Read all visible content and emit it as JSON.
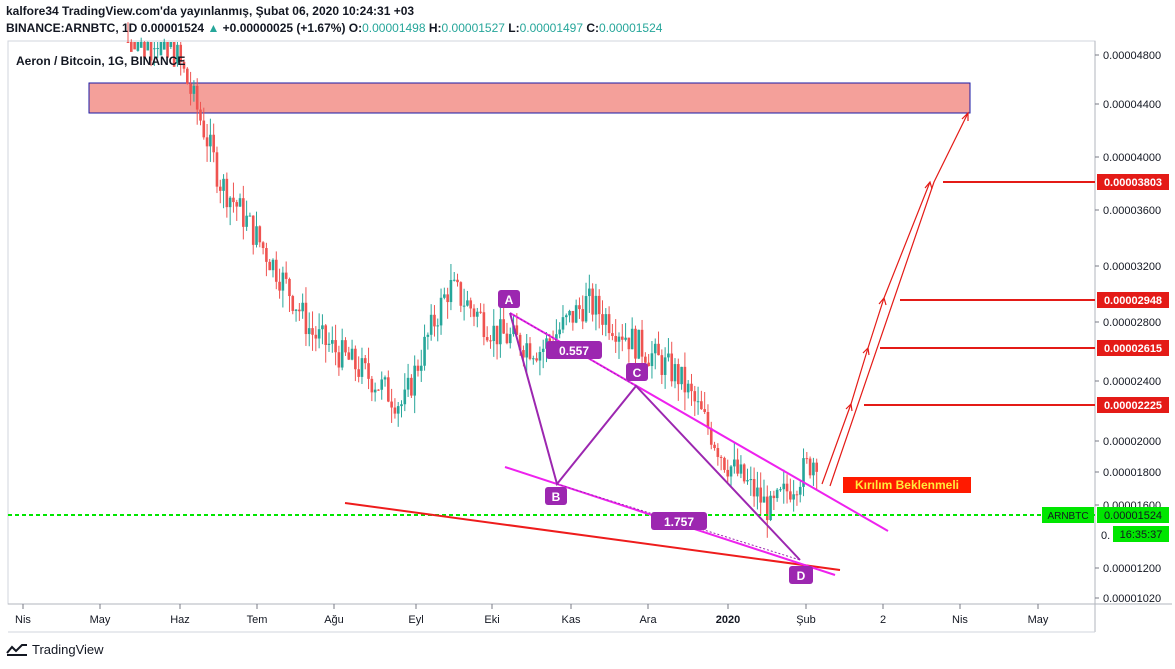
{
  "header": {
    "publish_line": "kalfore34 TradingView.com'da yayınlanmış, Şubat 06, 2020 10:24:31 +03",
    "symbol_line": "BINANCE:ARNBTC, 1D",
    "close": "0.00001524",
    "change_arrow": "▲",
    "change": "+0.00000025 (+1.67%)",
    "o_label": "O:",
    "o_value": "0.00001498",
    "h_label": "H:",
    "h_value": "0.00001527",
    "l_label": "L:",
    "l_value": "0.00001497",
    "c_label": "C:",
    "c_value": "0.00001524"
  },
  "chart": {
    "title": "Aeron / Bitcoin, 1G, BINANCE",
    "y_ticks": [
      "0.00004800",
      "0.00004400",
      "0.00004000",
      "0.00003600",
      "0.00003200",
      "0.00002800",
      "0.00002400",
      "0.00002000",
      "0.00001800",
      "0.00001600",
      "0.00001200",
      "0.00001020"
    ],
    "x_ticks": [
      "Nis",
      "May",
      "Haz",
      "Tem",
      "Ağu",
      "Eyl",
      "Eki",
      "Kas",
      "Ara",
      "2020",
      "Şub",
      "2",
      "Nis",
      "May"
    ],
    "price_tag": {
      "symbol": "ARNBTC",
      "value": "0.00001524",
      "countdown": "16:35:37",
      "partial": "0."
    },
    "target_labels": [
      "0.00003803",
      "0.00002948",
      "0.00002615",
      "0.00002225"
    ],
    "pattern_points": [
      "A",
      "B",
      "C",
      "D"
    ],
    "ratios": [
      "0.557",
      "1.757"
    ],
    "breakout_label": "Kırılım Beklenmeli"
  },
  "colors": {
    "candle_up": "#26a69a",
    "candle_down": "#ef5350",
    "pattern": "#9c27b0",
    "trendline": "#ee22ee",
    "support": "#ee1c1c",
    "target": "#e41b17",
    "current_price": "#00e600",
    "resistance_zone": "#f4a09a",
    "breakout_bg": "#ff1a00",
    "breakout_text": "#ffeb3b"
  },
  "chart_data": {
    "type": "candlestick",
    "pair": "ARNBTC",
    "timeframe": "1D",
    "exchange": "BINANCE",
    "x": [
      "May",
      "Haz",
      "Tem",
      "Ağu",
      "Eyl",
      "Eki",
      "Kas",
      "Ara",
      "2020",
      "Şub"
    ],
    "close_path": [
      5.2e-05,
      4.8e-05,
      3.3e-05,
      2.7e-05,
      2.15e-05,
      1.95e-05,
      1.75e-05,
      2.45e-05,
      2.15e-05,
      2.05e-05,
      2.35e-05,
      2.1e-05,
      1.9e-05,
      1.5e-05,
      1.3e-05,
      1.52e-05
    ],
    "pattern": {
      "A": 2.87e-05,
      "B": 1.75e-05,
      "C": 2.38e-05,
      "D": 1.26e-05
    },
    "ratios": {
      "AB_to_BC": 0.557,
      "CD_to_BC": 1.757
    },
    "last_price": 1.524e-05,
    "resistance_zone": [
      4.33e-05,
      4.55e-05
    ],
    "targets": [
      2.225e-05,
      2.615e-05,
      2.948e-05,
      3.803e-05
    ],
    "ylim": [
      1e-05,
      4.9e-05
    ],
    "y_scale": "log"
  }
}
